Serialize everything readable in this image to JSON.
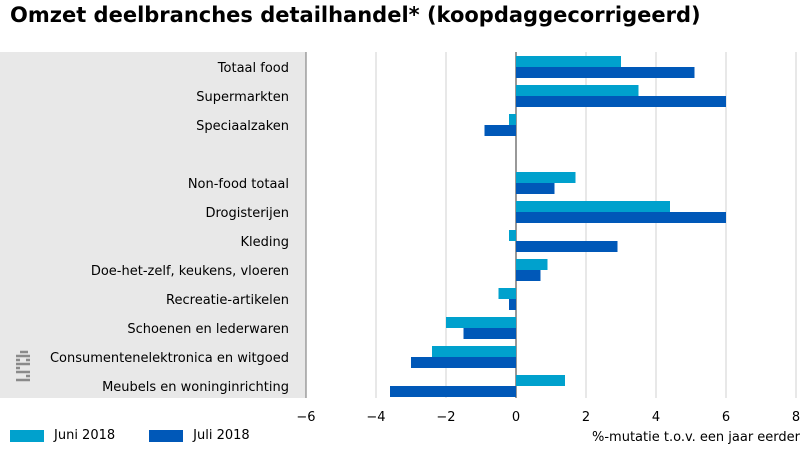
{
  "chart_data": {
    "type": "bar",
    "orientation": "horizontal",
    "title": "Omzet deelbranches detailhandel* (koopdaggecorrigeerd)",
    "xlabel": "%-mutatie t.o.v. een jaar eerder",
    "xlim": [
      -6,
      8
    ],
    "xticks": [
      -6,
      -4,
      -2,
      0,
      2,
      4,
      6,
      8
    ],
    "grid": true,
    "legend_position": "bottom-left",
    "categories": [
      "Totaal food",
      "Supermarkten",
      "Speciaalzaken",
      "",
      "Non-food totaal",
      "Drogisterijen",
      "Kleding",
      "Doe-het-zelf, keukens, vloeren",
      "Recreatie-artikelen",
      "Schoenen en lederwaren",
      "Consumentenelektronica en witgoed",
      "Meubels en woninginrichting"
    ],
    "series": [
      {
        "name": "Juni 2018",
        "color": "#00a1cd",
        "values": [
          3.0,
          3.5,
          -0.2,
          null,
          1.7,
          4.4,
          -0.2,
          0.9,
          -0.5,
          -2.0,
          -2.4,
          1.4
        ]
      },
      {
        "name": "Juli 2018",
        "color": "#0058b8",
        "values": [
          5.1,
          6.0,
          -0.9,
          null,
          1.1,
          6.0,
          2.9,
          0.7,
          -0.2,
          -1.5,
          -3.0,
          -3.6
        ]
      }
    ]
  },
  "logo": {
    "name": "cbs-logo",
    "text": "cbs"
  }
}
